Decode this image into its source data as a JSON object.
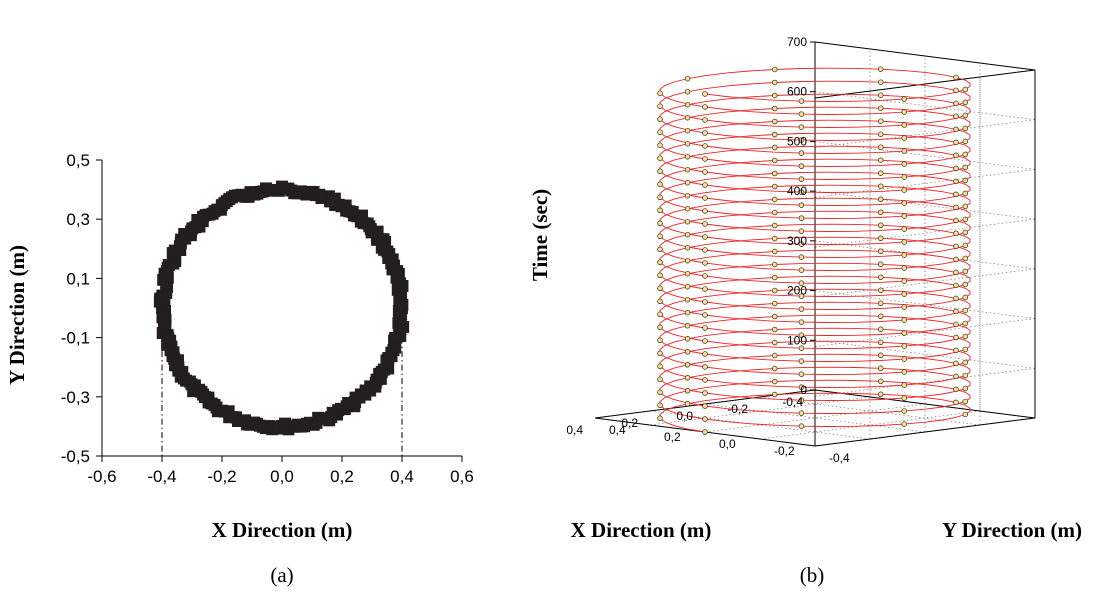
{
  "chart_data": [
    {
      "panel": "(a)",
      "type": "scatter",
      "title": "",
      "xlabel": "X Direction (m)",
      "ylabel": "Y Direction (m)",
      "xlim": [
        -0.6,
        0.6
      ],
      "ylim": [
        -0.5,
        0.5
      ],
      "xticks": [
        "-0,6",
        "-0,4",
        "-0,2",
        "0,0",
        "0,2",
        "0,4",
        "0,6"
      ],
      "yticks": [
        "-0,5",
        "-0,3",
        "-0,1",
        "0,1",
        "0,3",
        "0,5"
      ],
      "grid": false,
      "series": [
        {
          "marker": "filled-square",
          "color": "#231f20",
          "shape": "circle",
          "center": [
            0.0,
            0.0
          ],
          "radius": 0.4,
          "points": 240
        }
      ],
      "reference_lines": [
        {
          "style": "dash-dot",
          "x": -0.4,
          "y_from": -0.5,
          "y_to": -0.1
        },
        {
          "style": "dash-dot",
          "x": 0.4,
          "y_from": -0.5,
          "y_to": -0.1
        }
      ]
    },
    {
      "panel": "(b)",
      "type": "scatter3d",
      "title": "",
      "xlabel": "X Direction (m)",
      "ylabel": "Y Direction (m)",
      "zlabel": "Time (sec)",
      "xlim": [
        -0.4,
        0.4
      ],
      "ylim": [
        -0.4,
        0.4
      ],
      "zlim": [
        0,
        700
      ],
      "xticks": [
        "-0,4",
        "-0,2",
        "0,0",
        "0,2",
        "0,4"
      ],
      "yticks": [
        "-0,4",
        "-0,2",
        "0,0",
        "0,2",
        "0,4"
      ],
      "zticks": [
        "0",
        "100",
        "200",
        "300",
        "400",
        "500",
        "600",
        "700"
      ],
      "grid": true,
      "series": [
        {
          "trajectory": "helix",
          "radius": 0.4,
          "line_color": "#e8272b",
          "marker": "circle",
          "marker_fill": "#f0e0a0",
          "marker_edge": "#3a3000",
          "turns": 26,
          "t_range": [
            0,
            680
          ]
        }
      ]
    }
  ],
  "captions": [
    "(a)",
    "(b)"
  ]
}
